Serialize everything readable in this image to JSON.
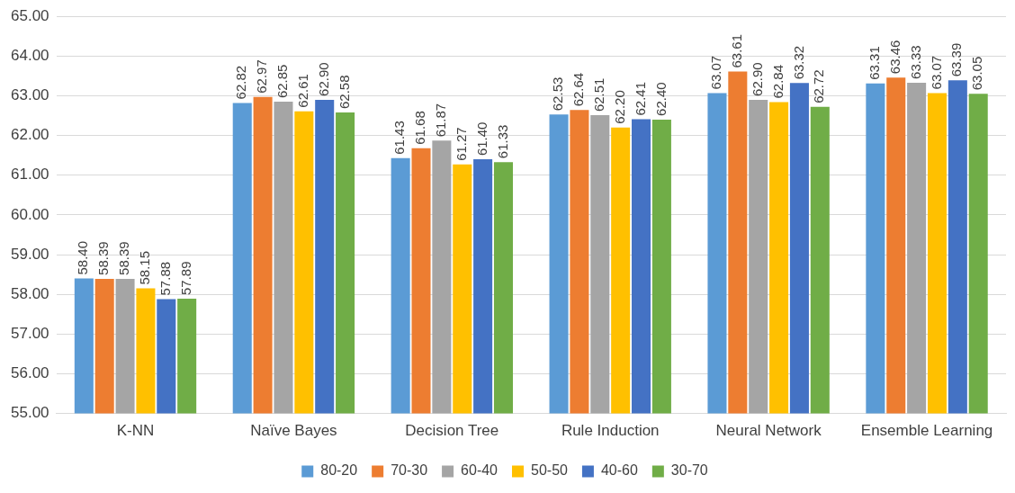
{
  "chart_data": {
    "type": "bar",
    "categories": [
      "K-NN",
      "Naïve Bayes",
      "Decision Tree",
      "Rule Induction",
      "Neural Network",
      "Ensemble Learning"
    ],
    "series": [
      {
        "name": "80-20",
        "color": "#5b9bd5",
        "values": [
          58.4,
          62.82,
          61.43,
          62.53,
          63.07,
          63.31
        ],
        "value_labels": [
          "58.40",
          "62.82",
          "61.43",
          "62.53",
          "63.07",
          "63.31"
        ]
      },
      {
        "name": "70-30",
        "color": "#ed7d31",
        "values": [
          58.39,
          62.97,
          61.68,
          62.64,
          63.61,
          63.46
        ],
        "value_labels": [
          "58.39",
          "62.97",
          "61.68",
          "62.64",
          "63.61",
          "63.46"
        ]
      },
      {
        "name": "60-40",
        "color": "#a5a5a5",
        "values": [
          58.39,
          62.85,
          61.87,
          62.51,
          62.9,
          63.33
        ],
        "value_labels": [
          "58.39",
          "62.85",
          "61.87",
          "62.51",
          "62.90",
          "63.33"
        ]
      },
      {
        "name": "50-50",
        "color": "#ffc000",
        "values": [
          58.15,
          62.61,
          61.27,
          62.2,
          62.84,
          63.07
        ],
        "value_labels": [
          "58.15",
          "62.61",
          "61.27",
          "62.20",
          "62.84",
          "63.07"
        ]
      },
      {
        "name": "40-60",
        "color": "#4472c4",
        "values": [
          57.88,
          62.9,
          61.4,
          62.41,
          63.32,
          63.39
        ],
        "value_labels": [
          "57.88",
          "62.90",
          "61.40",
          "62.41",
          "63.32",
          "63.39"
        ]
      },
      {
        "name": "30-70",
        "color": "#70ad47",
        "values": [
          57.89,
          62.58,
          61.33,
          62.4,
          62.72,
          63.05
        ],
        "value_labels": [
          "57.89",
          "62.58",
          "61.33",
          "62.40",
          "62.72",
          "63.05"
        ]
      }
    ],
    "ylim": [
      55,
      65
    ],
    "yticks": [
      {
        "value": 55,
        "label": "55.00"
      },
      {
        "value": 56,
        "label": "56.00"
      },
      {
        "value": 57,
        "label": "57.00"
      },
      {
        "value": 58,
        "label": "58.00"
      },
      {
        "value": 59,
        "label": "59.00"
      },
      {
        "value": 60,
        "label": "60.00"
      },
      {
        "value": 61,
        "label": "61.00"
      },
      {
        "value": 62,
        "label": "62.00"
      },
      {
        "value": 63,
        "label": "63.00"
      },
      {
        "value": 64,
        "label": "64.00"
      },
      {
        "value": 65,
        "label": "65.00"
      }
    ],
    "grid": "y",
    "legend": "bottom"
  }
}
